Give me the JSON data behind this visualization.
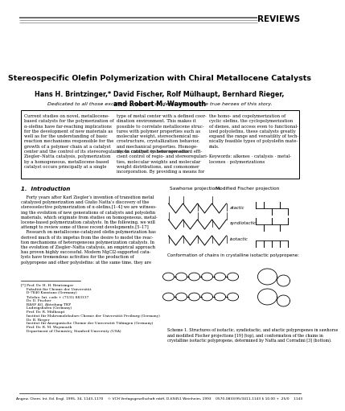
{
  "background_color": "#ffffff",
  "header_reviews": "REVIEWS",
  "title_text": "Stereospecific Olefin Polymerization with Chiral Metallocene Catalysts",
  "authors_text": "Hans H. Brintzinger,* David Fischer, Rolf Mülhaupt, Bernhard Rieger,\nand Robert M. Waymouth",
  "dedication_text": "Dedicated to all those excellent graduate students who are the true heroes of this story.",
  "abstract_col1": "Current studies on novel, metallocene-\nbased catalysts for the polymerization of\nα-olefins have far-reaching implications\nfor the development of new materials as\nwell as for the understanding of basic\nreaction mechanisms responsible for the\ngrowth of a polymer chain at a catalyst\ncenter and the control of its stereoregularity. In contrast to heterogeneous\nZiegler–Natta catalysis, polymerization\nby a homogeneous, metallocene-based\ncatalyst occurs principally at a single",
  "abstract_col2": "type of metal center with a defined coor-\ndination environment. This makes it\npossible to correlate metallocene struc-\ntures with polymer properties such as\nmolecular weight, stereochemical mi-\ncrostructure, crystallization behavior,\nand mechanical properties. Homoge-\nneous catalyst systems now afford effi-\ncient control of regio- and stereoregulari-\nties, molecular weights and molecular\nweight distributions, and comonomer\nincorporation. By providing a means for",
  "abstract_col3": "the homo- and copolymerization of\ncyclic olefins, the cyclopolymerization\nof dienes, and access even to functional-\nized polyolefins, these catalysts greatly\nexpand the range and versatility of tech-\nnically feasible types of polyolefin mate-\nrials.\n\nKeywords: alkenes · catalysis · metal-\nlocenes · polymerizations",
  "section1_title": "1.  Introduction",
  "intro_text": "    Forty years after Karl Ziegler’s invention of transition metal\ncatalyzed polymerization and Giulio Natta’s discovery of the\nstereoselective polymerization of α-olefins,[1–4] we are witness-\ning the evolution of new generations of catalysts and polyolefin\nmaterials, which originate from studies on homogeneous, metal-\nlocene-based polymerization catalysts. In the following, we will\nattempt to review some of these recent developments.[5–17]\n    Research on metallocene-catalyzed olefin polymerization has\nderived much of its impetus from the desire to model the reac-\ntion mechanisms of heterogeneous polymerization catalysts. In\nthe evolution of Ziegler–Natta catalysis, an empirical approach\nhas proven highly successful. Modern MgCl2-supported cata-\nlysts have tremendous activities for the production of\npolypropene and other polyolefins; at the same time, they are",
  "footnotes_text": "[*] Prof. Dr. H. H. Brintzinger\n     Fakultät für Chemie der Universität\n     D-7840 Konstanz (Germany)\n     Telefax: Int. code + (7531) 883137\n     Dr. D. Fischer\n     BASF AG, Abteilung TKP\n     Ludwigshafen (Germany)\n     Prof. Dr. R. Mülhaupt\n     Institut für Makromolekulare Chemie der Universität Freiburg (Germany)\n     Dr. B. Rieger\n     Institut für Anorganische Chemie der Universität Tübingen (Germany)\n     Prof. Dr. R. M. Waymouth\n     Department of Chemistry, Stanford University (USA)",
  "footer_text": "Angew. Chem. Int. Ed. Engl. 1995, 34, 1143–1170    © VCH Verlagsgesellschaft mbH, D-69451 Weinheim, 1993    0570-0833/95/3411-1143 $ 10.00 + .25/0    1143",
  "sawhorse_label": "Sawhorse projections",
  "fischer_label": "Modified Fischer projection",
  "atactic_label": "atactic",
  "syndiotactic_label": "syndiotactic",
  "isotactic_label": "isotactic",
  "conformation_label": "Conformation of chains in crystalline isotactic polypropene:",
  "scheme_caption": "Scheme 1. Structures of isotactic, syndiotactic, and atactic polypropenes in sawhorse\nand modified Fischer projections [19] (top), and conformation of the chains in\ncrystalline isotactic polypropene, determined by Natta and Corradini [3] (bottom)."
}
